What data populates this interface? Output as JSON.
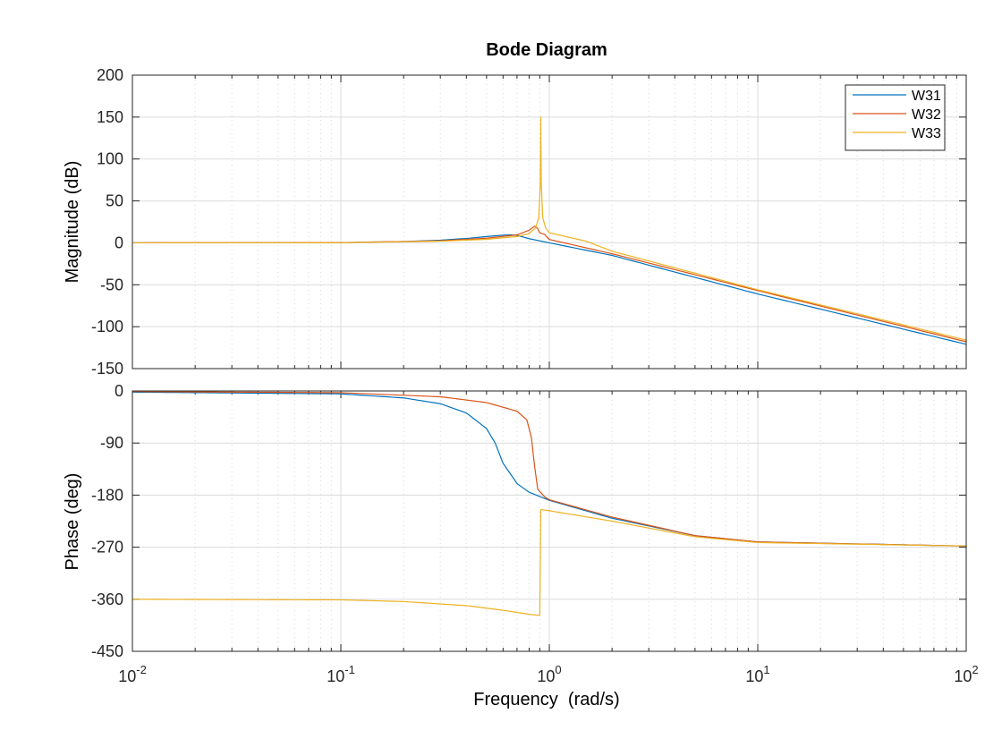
{
  "chart_data": {
    "type": "line",
    "title": "Bode Diagram",
    "xlabel": "Frequency  (rad/s)",
    "x_scale": "log",
    "xlim": [
      0.01,
      100
    ],
    "x_tick_labels": [
      {
        "base": "10",
        "exp": "-2"
      },
      {
        "base": "10",
        "exp": "-1"
      },
      {
        "base": "10",
        "exp": "0"
      },
      {
        "base": "10",
        "exp": "1"
      },
      {
        "base": "10",
        "exp": "2"
      }
    ],
    "grid": true,
    "legend": {
      "placement": "top-right",
      "entries": [
        "W31",
        "W32",
        "W33"
      ]
    },
    "colors": {
      "W31": "#0072BD",
      "W32": "#D95319",
      "W33": "#EDB120"
    },
    "panels": [
      {
        "name": "magnitude",
        "ylabel": "Magnitude (dB)",
        "ylim": [
          -150,
          200
        ],
        "y_ticks": [
          "200",
          "150",
          "100",
          "50",
          "0",
          "-50",
          "-100",
          "-150"
        ],
        "series": [
          {
            "name": "W31",
            "points": [
              [
                0.01,
                0
              ],
              [
                0.1,
                0.3
              ],
              [
                0.2,
                1.5
              ],
              [
                0.3,
                3.2
              ],
              [
                0.4,
                5.2
              ],
              [
                0.5,
                7.5
              ],
              [
                0.6,
                9.2
              ],
              [
                0.65,
                9.6
              ],
              [
                0.7,
                9
              ],
              [
                0.8,
                5
              ],
              [
                1,
                0
              ],
              [
                2,
                -15
              ],
              [
                10,
                -61
              ],
              [
                100,
                -121
              ]
            ]
          },
          {
            "name": "W32",
            "points": [
              [
                0.01,
                0
              ],
              [
                0.1,
                0.2
              ],
              [
                0.3,
                2.5
              ],
              [
                0.5,
                5.5
              ],
              [
                0.7,
                9.5
              ],
              [
                0.8,
                15
              ],
              [
                0.85,
                20
              ],
              [
                0.88,
                17
              ],
              [
                0.9,
                12
              ],
              [
                0.95,
                10
              ],
              [
                1,
                4
              ],
              [
                2,
                -13
              ],
              [
                10,
                -57
              ],
              [
                100,
                -118
              ]
            ]
          },
          {
            "name": "W33",
            "points": [
              [
                0.01,
                0
              ],
              [
                0.1,
                0.1
              ],
              [
                0.3,
                2
              ],
              [
                0.5,
                4.2
              ],
              [
                0.7,
                7.5
              ],
              [
                0.8,
                11
              ],
              [
                0.86,
                18
              ],
              [
                0.89,
                30
              ],
              [
                0.905,
                70
              ],
              [
                0.91,
                150
              ],
              [
                0.915,
                70
              ],
              [
                0.93,
                30
              ],
              [
                0.96,
                18
              ],
              [
                1,
                12
              ],
              [
                1.5,
                2
              ],
              [
                2,
                -10
              ],
              [
                10,
                -56
              ],
              [
                100,
                -116
              ]
            ]
          }
        ]
      },
      {
        "name": "phase",
        "ylabel": "Phase (deg)",
        "ylim": [
          -450,
          0
        ],
        "y_ticks": [
          "0",
          "-90",
          "-180",
          "-270",
          "-360",
          "-450"
        ],
        "series": [
          {
            "name": "W31",
            "points": [
              [
                0.01,
                -2
              ],
              [
                0.1,
                -5
              ],
              [
                0.2,
                -12
              ],
              [
                0.3,
                -22
              ],
              [
                0.4,
                -38
              ],
              [
                0.5,
                -65
              ],
              [
                0.55,
                -90
              ],
              [
                0.6,
                -125
              ],
              [
                0.7,
                -160
              ],
              [
                0.8,
                -175
              ],
              [
                1,
                -189
              ],
              [
                2,
                -220
              ],
              [
                5,
                -250
              ],
              [
                10,
                -261
              ],
              [
                100,
                -268
              ]
            ]
          },
          {
            "name": "W32",
            "points": [
              [
                0.01,
                -1
              ],
              [
                0.1,
                -3
              ],
              [
                0.3,
                -10
              ],
              [
                0.5,
                -20
              ],
              [
                0.7,
                -35
              ],
              [
                0.78,
                -50
              ],
              [
                0.82,
                -80
              ],
              [
                0.85,
                -130
              ],
              [
                0.88,
                -170
              ],
              [
                0.95,
                -183
              ],
              [
                1,
                -188
              ],
              [
                2,
                -218
              ],
              [
                5,
                -250
              ],
              [
                10,
                -261
              ],
              [
                100,
                -268
              ]
            ]
          },
          {
            "name": "W33",
            "points": [
              [
                0.01,
                -360
              ],
              [
                0.1,
                -361
              ],
              [
                0.2,
                -364
              ],
              [
                0.4,
                -371
              ],
              [
                0.6,
                -379
              ],
              [
                0.8,
                -386
              ],
              [
                0.9,
                -388
              ],
              [
                0.91,
                -205
              ],
              [
                1,
                -207
              ],
              [
                2,
                -225
              ],
              [
                5,
                -252
              ],
              [
                10,
                -262
              ],
              [
                100,
                -268
              ]
            ]
          }
        ]
      }
    ]
  }
}
